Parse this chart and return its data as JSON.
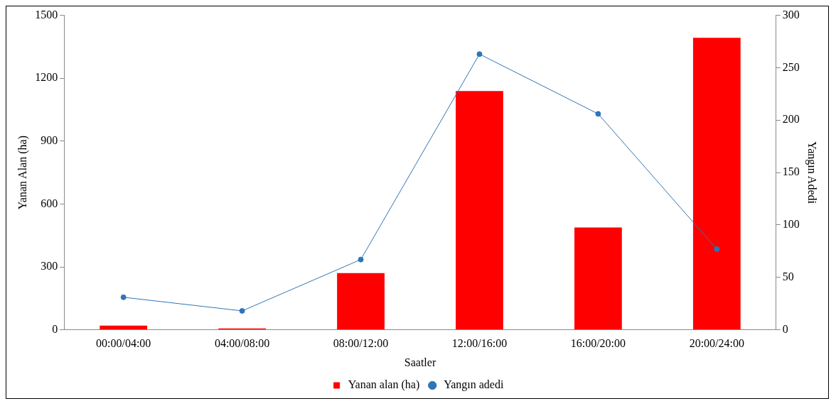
{
  "chart_data": {
    "type": "bar",
    "xlabel": "Saatler",
    "ylabel": "Yanan Alan (ha)",
    "y2label": "Yangın Adedi",
    "categories": [
      "00:00/04:00",
      "04:00/08:00",
      "08:00/12:00",
      "12:00/16:00",
      "16:00/20:00",
      "20:00/24:00"
    ],
    "series": [
      {
        "name": "Yanan alan (ha)",
        "color": "#ff0000",
        "values": [
          20,
          6,
          270,
          1139,
          488,
          1393
        ]
      },
      {
        "name": "Yangın adedi",
        "type": "line",
        "axis": "y2",
        "color": "#2e75b6",
        "marker": "circle",
        "values": [
          31,
          18,
          67,
          263,
          206,
          77
        ]
      }
    ],
    "ylim": [
      0,
      1500
    ],
    "yticks": [
      0,
      300,
      600,
      900,
      1200,
      1500
    ],
    "y2lim": [
      0,
      300
    ],
    "y2ticks": [
      0,
      50,
      100,
      150,
      200,
      250,
      300
    ],
    "grid": false,
    "legend": "bottom"
  }
}
